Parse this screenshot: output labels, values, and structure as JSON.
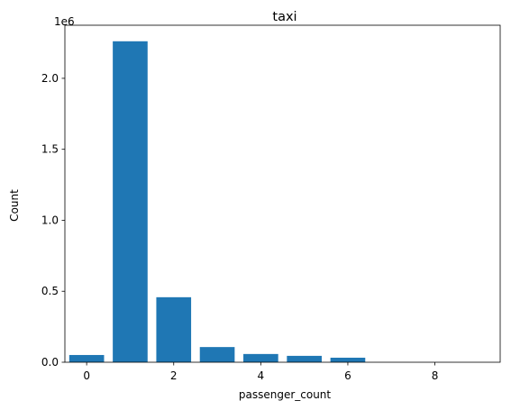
{
  "chart_data": {
    "type": "bar",
    "title": "taxi",
    "xlabel": "passenger_count",
    "ylabel": "Count",
    "y_offset_label": "1e6",
    "color": "#1f77b4",
    "x": [
      0,
      1,
      2,
      3,
      4,
      5,
      6,
      7,
      8,
      9
    ],
    "values": [
      51000,
      2261000,
      458000,
      107000,
      58000,
      45000,
      32000,
      300,
      100,
      50
    ],
    "xlim": [
      -0.5,
      9.5
    ],
    "ylim": [
      0,
      2374000
    ],
    "x_ticks": [
      0,
      2,
      4,
      6,
      8
    ],
    "x_tick_labels": [
      "0",
      "2",
      "4",
      "6",
      "8"
    ],
    "y_ticks": [
      0,
      500000,
      1000000,
      1500000,
      2000000
    ],
    "y_tick_labels": [
      "0.0",
      "0.5",
      "1.0",
      "1.5",
      "2.0"
    ],
    "grid": false,
    "legend": false
  }
}
